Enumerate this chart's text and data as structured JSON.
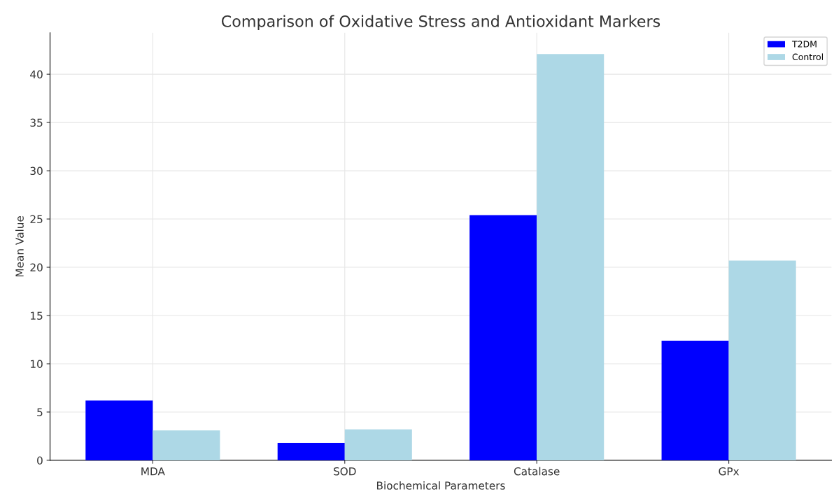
{
  "chart_data": {
    "type": "bar",
    "title": "Comparison of Oxidative Stress and Antioxidant Markers",
    "xlabel": "Biochemical Parameters",
    "ylabel": "Mean Value",
    "categories": [
      "MDA",
      "SOD",
      "Catalase",
      "GPx"
    ],
    "series": [
      {
        "name": "T2DM",
        "color": "#0000ff",
        "values": [
          6.2,
          1.8,
          25.4,
          12.4
        ]
      },
      {
        "name": "Control",
        "color": "#add8e6",
        "values": [
          3.1,
          3.2,
          42.1,
          20.7
        ]
      }
    ],
    "ylim": [
      0,
      44.3
    ],
    "yticks": [
      0,
      5,
      10,
      15,
      20,
      25,
      30,
      35,
      40
    ],
    "grid": true,
    "legend": "top right"
  }
}
